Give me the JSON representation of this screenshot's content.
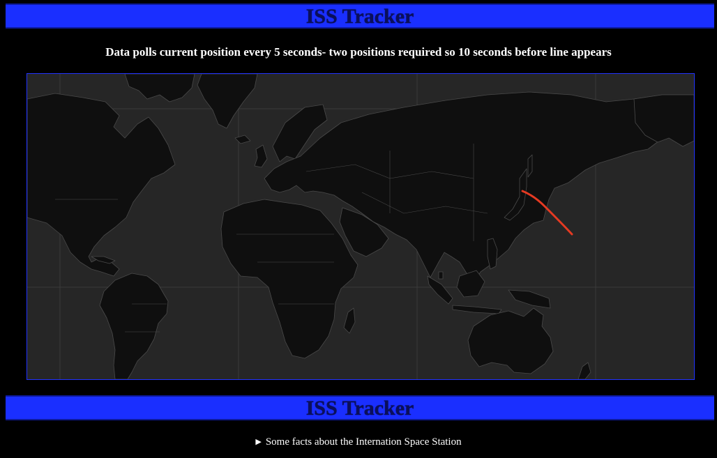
{
  "header": {
    "title": "ISS Tracker"
  },
  "subtitle": "Data polls current position every 5 seconds- two positions required so 10 seconds before line appears",
  "map": {
    "land_color": "#0f0f0f",
    "ocean_color": "#262626",
    "border_color": "#444444",
    "track_color": "#e53a22"
  },
  "footer_banner": {
    "title": "ISS Tracker"
  },
  "details": {
    "summary": "Some facts about the Internation Space Station",
    "marker_icon": "disclosure-triangle-icon"
  }
}
